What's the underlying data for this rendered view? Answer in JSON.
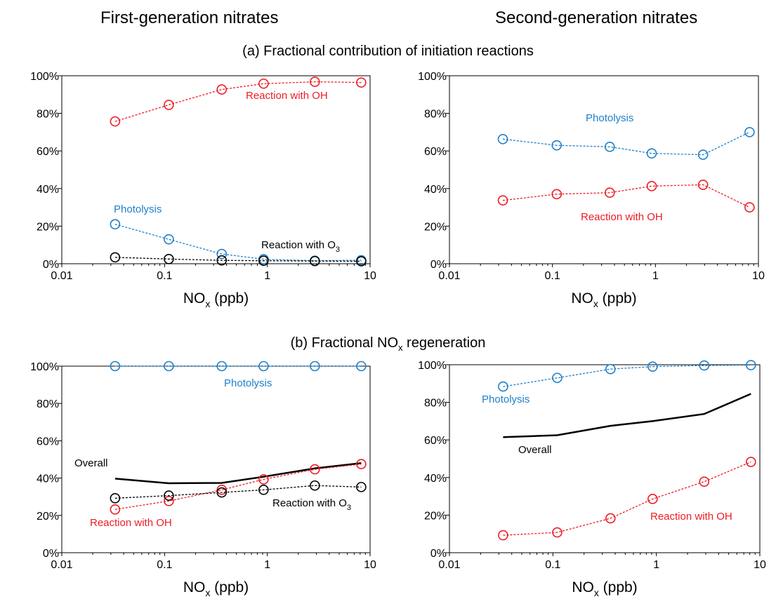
{
  "column_titles": {
    "left": "First-generation nitrates",
    "right": "Second-generation nitrates"
  },
  "section_titles": {
    "a": "(a) Fractional contribution of initiation reactions",
    "b_pre": "(b) Fractional NO",
    "b_sub": "x",
    "b_post": " regeneration"
  },
  "colors": {
    "oh": "#ee1c25",
    "photolysis": "#1f7fc9",
    "o3": "#000000",
    "overall": "#000000"
  },
  "chart_data": [
    {
      "id": "a1",
      "type": "line",
      "xscale": "log",
      "xlim": [
        0.01,
        10
      ],
      "ylim": [
        0,
        1
      ],
      "xticks": [
        "0.01",
        "0.1",
        "1",
        "10"
      ],
      "yticks": [
        "0%",
        "20%",
        "40%",
        "60%",
        "80%",
        "100%"
      ],
      "xlabel": {
        "main": "NO",
        "sub": "x",
        "post": " (ppb)"
      },
      "x": [
        0.033,
        0.11,
        0.36,
        0.92,
        2.9,
        8.2
      ],
      "series": [
        {
          "name": "Reaction with OH",
          "color": "#ee1c25",
          "style": "dashed-circles",
          "values": [
            0.757,
            0.845,
            0.927,
            0.958,
            0.968,
            0.964
          ],
          "label": {
            "pre": "Reaction with OH",
            "sub": "",
            "post": ""
          }
        },
        {
          "name": "Photolysis",
          "color": "#1f7fc9",
          "style": "dashed-circles",
          "values": [
            0.21,
            0.13,
            0.052,
            0.024,
            0.016,
            0.019
          ],
          "label": {
            "pre": "Photolysis",
            "sub": "",
            "post": ""
          }
        },
        {
          "name": "Reaction with O3",
          "color": "#000000",
          "style": "dashed-circles",
          "values": [
            0.034,
            0.025,
            0.018,
            0.016,
            0.014,
            0.013
          ],
          "label": {
            "pre": "Reaction with O",
            "sub": "3",
            "post": ""
          }
        }
      ]
    },
    {
      "id": "a2",
      "type": "line",
      "xscale": "log",
      "xlim": [
        0.01,
        10
      ],
      "ylim": [
        0,
        1
      ],
      "xticks": [
        "0.01",
        "0.1",
        "1",
        "10"
      ],
      "yticks": [
        "0%",
        "20%",
        "40%",
        "60%",
        "80%",
        "100%"
      ],
      "xlabel": {
        "main": "NO",
        "sub": "x",
        "post": " (ppb)"
      },
      "x": [
        0.033,
        0.11,
        0.36,
        0.92,
        2.9,
        8.2
      ],
      "series": [
        {
          "name": "Photolysis",
          "color": "#1f7fc9",
          "style": "dashed-circles",
          "values": [
            0.663,
            0.63,
            0.622,
            0.587,
            0.58,
            0.7
          ],
          "label": {
            "pre": "Photolysis",
            "sub": "",
            "post": ""
          }
        },
        {
          "name": "Reaction with OH",
          "color": "#ee1c25",
          "style": "dashed-circles",
          "values": [
            0.337,
            0.37,
            0.378,
            0.413,
            0.42,
            0.3
          ],
          "label": {
            "pre": "Reaction with OH",
            "sub": "",
            "post": ""
          }
        }
      ]
    },
    {
      "id": "b1",
      "type": "line",
      "xscale": "log",
      "xlim": [
        0.01,
        10
      ],
      "ylim": [
        0,
        1
      ],
      "xticks": [
        "0.01",
        "0.1",
        "1",
        "10"
      ],
      "yticks": [
        "0%",
        "20%",
        "40%",
        "60%",
        "80%",
        "100%"
      ],
      "xlabel": {
        "main": "NO",
        "sub": "x",
        "post": " (ppb)"
      },
      "x": [
        0.033,
        0.11,
        0.36,
        0.92,
        2.9,
        8.2
      ],
      "series": [
        {
          "name": "Photolysis",
          "color": "#1f7fc9",
          "style": "dashed-circles",
          "values": [
            1.0,
            1.0,
            1.0,
            1.0,
            1.0,
            1.0
          ],
          "label": {
            "pre": "Photolysis",
            "sub": "",
            "post": ""
          }
        },
        {
          "name": "Overall",
          "color": "#000000",
          "style": "solid",
          "values": [
            0.397,
            0.372,
            0.374,
            0.407,
            0.452,
            0.48
          ],
          "label": {
            "pre": "Overall",
            "sub": "",
            "post": ""
          }
        },
        {
          "name": "Reaction with OH",
          "color": "#ee1c25",
          "style": "dashed-circles",
          "values": [
            0.232,
            0.277,
            0.337,
            0.393,
            0.447,
            0.475
          ],
          "label": {
            "pre": "Reaction with OH",
            "sub": "",
            "post": ""
          }
        },
        {
          "name": "Reaction with O3",
          "color": "#000000",
          "style": "dashed-circles",
          "values": [
            0.292,
            0.306,
            0.323,
            0.337,
            0.36,
            0.352
          ],
          "label": {
            "pre": "Reaction with O",
            "sub": "3",
            "post": ""
          }
        }
      ]
    },
    {
      "id": "b2",
      "type": "line",
      "xscale": "log",
      "xlim": [
        0.01,
        10
      ],
      "ylim": [
        0,
        1
      ],
      "xticks": [
        "0.01",
        "0.1",
        "1",
        "10"
      ],
      "yticks": [
        "0%",
        "20%",
        "40%",
        "60%",
        "80%",
        "100%"
      ],
      "xlabel": {
        "main": "NO",
        "sub": "x",
        "post": " (ppb)"
      },
      "x": [
        0.033,
        0.11,
        0.36,
        0.92,
        2.9,
        8.2
      ],
      "series": [
        {
          "name": "Photolysis",
          "color": "#1f7fc9",
          "style": "dashed-circles",
          "values": [
            0.884,
            0.93,
            0.977,
            0.99,
            0.996,
            0.998
          ],
          "label": {
            "pre": "Photolysis",
            "sub": "",
            "post": ""
          }
        },
        {
          "name": "Overall",
          "color": "#000000",
          "style": "solid",
          "values": [
            0.615,
            0.625,
            0.675,
            0.7,
            0.738,
            0.845
          ],
          "label": {
            "pre": "Overall",
            "sub": "",
            "post": ""
          }
        },
        {
          "name": "Reaction with OH",
          "color": "#ee1c25",
          "style": "dashed-circles",
          "values": [
            0.093,
            0.108,
            0.183,
            0.286,
            0.378,
            0.483
          ],
          "label": {
            "pre": "Reaction with OH",
            "sub": "",
            "post": ""
          }
        }
      ]
    }
  ]
}
